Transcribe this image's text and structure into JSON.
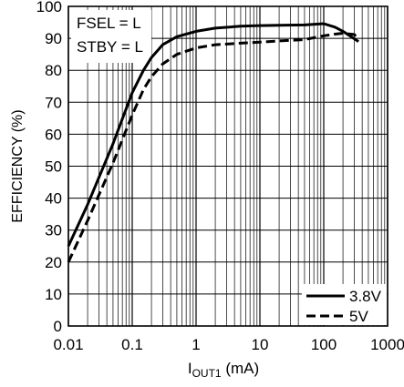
{
  "chart_data": {
    "type": "line",
    "xscale": "log",
    "xlim": [
      0.01,
      1000
    ],
    "ylim": [
      0,
      100
    ],
    "grid": true,
    "xticks": [
      {
        "value": 0.01,
        "label": "0.01"
      },
      {
        "value": 0.1,
        "label": "0.1"
      },
      {
        "value": 1,
        "label": "1"
      },
      {
        "value": 10,
        "label": "10"
      },
      {
        "value": 100,
        "label": "100"
      },
      {
        "value": 1000,
        "label": "1000"
      }
    ],
    "yticks": [
      0,
      10,
      20,
      30,
      40,
      50,
      60,
      70,
      80,
      90,
      100
    ],
    "ylabel": "EFFICIENCY (%)",
    "xlabel": {
      "main": "I",
      "sub": "OUT1",
      "unit": " (mA)"
    },
    "annotations": [
      "FSEL = L",
      "STBY = L"
    ],
    "legend_position": "bottom-right",
    "series": [
      {
        "name": "3.8V",
        "style": "solid",
        "x": [
          0.01,
          0.02,
          0.05,
          0.1,
          0.15,
          0.2,
          0.3,
          0.5,
          1,
          2,
          5,
          10,
          20,
          50,
          100,
          150,
          200,
          350
        ],
        "y": [
          25,
          38,
          57,
          73,
          80,
          84,
          88,
          90.5,
          92.2,
          93.2,
          93.8,
          94.0,
          94.1,
          94.2,
          94.6,
          93.5,
          92.2,
          89
        ]
      },
      {
        "name": "5V",
        "style": "dashed",
        "x": [
          0.01,
          0.02,
          0.05,
          0.1,
          0.15,
          0.2,
          0.3,
          0.5,
          1,
          2,
          5,
          10,
          20,
          50,
          100,
          150,
          200,
          300,
          350
        ],
        "y": [
          20,
          33,
          51,
          66,
          74,
          78,
          82,
          85,
          87,
          88,
          88.5,
          88.8,
          89.2,
          89.6,
          90.8,
          91.3,
          91.6,
          91.2,
          89.8
        ]
      }
    ]
  }
}
